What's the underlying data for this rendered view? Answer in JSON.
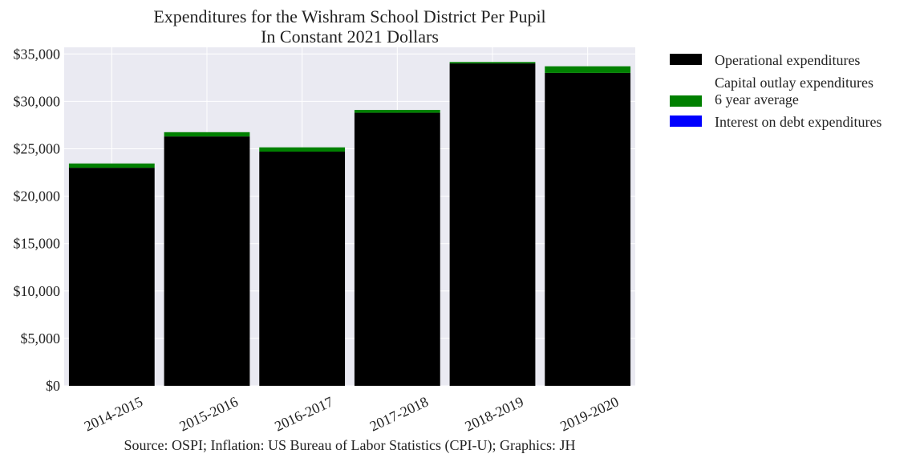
{
  "chart_data": {
    "type": "bar",
    "title": [
      "Expenditures for the Wishram School District Per Pupil",
      "In Constant 2021 Dollars"
    ],
    "categories": [
      "2014-2015",
      "2015-2016",
      "2016-2017",
      "2017-2018",
      "2018-2019",
      "2019-2020"
    ],
    "stacked": true,
    "series": [
      {
        "name": "Operational expenditures",
        "color": "#000000",
        "values": [
          23000,
          26300,
          24700,
          28800,
          34000,
          33000
        ]
      },
      {
        "name": "Capital outlay expenditures\n6 year average",
        "color": "#008000",
        "values": [
          450,
          450,
          450,
          300,
          150,
          700
        ]
      },
      {
        "name": "Interest on debt expenditures",
        "color": "#0000ff",
        "values": [
          0,
          0,
          0,
          0,
          0,
          0
        ]
      }
    ],
    "ylim": [
      0,
      35700
    ],
    "yticks": [
      0,
      5000,
      10000,
      15000,
      20000,
      25000,
      30000,
      35000
    ],
    "ytick_labels": [
      "$0",
      "$5,000",
      "$10,000",
      "$15,000",
      "$20,000",
      "$25,000",
      "$30,000",
      "$35,000"
    ],
    "grid": true,
    "background": "#eaeaf2",
    "legend_position": "outside-right",
    "source": "Source: OSPI; Inflation: US Bureau of Labor Statistics (CPI-U); Graphics: JH"
  }
}
